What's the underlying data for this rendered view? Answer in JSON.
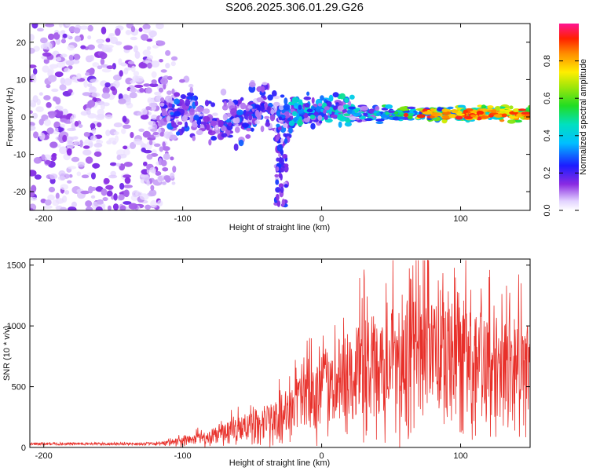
{
  "title": "S206.2025.306.01.29.G26",
  "chart_data": [
    {
      "type": "heatmap",
      "title": "S206.2025.306.01.29.G26",
      "xlabel": "Height of straight line (km)",
      "ylabel": "Frequency (Hz)",
      "xlim": [
        -210,
        150
      ],
      "ylim": [
        -25,
        25
      ],
      "xticks": [
        -200,
        -100,
        0,
        100
      ],
      "yticks": [
        -20,
        -10,
        0,
        10,
        20
      ],
      "colorbar": {
        "label": "Normalized spectral amplitude",
        "range": [
          0,
          1
        ],
        "ticks": [
          "0.0",
          "0.2",
          "0.4",
          "0.6",
          "0.8"
        ]
      },
      "features": [
        {
          "x_range": [
            -210,
            -115
          ],
          "freq_spread": [
            -25,
            25
          ],
          "amplitude": 0.05,
          "description": "diffuse noise"
        },
        {
          "x_range": [
            -115,
            -20
          ],
          "freq_center": 0,
          "freq_spread": [
            -12,
            12
          ],
          "amplitude": 0.15
        },
        {
          "x_range": [
            -35,
            -25
          ],
          "freq_range": [
            -25,
            -5
          ],
          "amplitude": 0.15
        },
        {
          "x_range": [
            -20,
            20
          ],
          "freq_center": 1.5,
          "freq_spread": [
            -5,
            6
          ],
          "amplitude": 0.3
        },
        {
          "x_range": [
            20,
            150
          ],
          "freq_center": 0.8,
          "freq_spread": [
            -2,
            3
          ],
          "amplitude": 0.85
        }
      ]
    },
    {
      "type": "line",
      "xlabel": "Height of straight line (km)",
      "ylabel": "SNR (10 * v/v)",
      "xlim": [
        -210,
        150
      ],
      "ylim": [
        0,
        1550
      ],
      "xticks": [
        -200,
        -100,
        0,
        100
      ],
      "yticks": [
        0,
        500,
        1000,
        1500
      ],
      "series": [
        {
          "name": "SNR",
          "color": "#e8302a",
          "envelope": {
            "x": [
              -210,
              -150,
              -120,
              -100,
              -80,
              -60,
              -40,
              -20,
              0,
              20,
              40,
              60,
              80,
              100,
              120,
              140,
              150
            ],
            "y": [
              30,
              30,
              30,
              60,
              110,
              180,
              260,
              380,
              560,
              720,
              820,
              880,
              900,
              860,
              820,
              780,
              800
            ]
          }
        }
      ]
    }
  ]
}
